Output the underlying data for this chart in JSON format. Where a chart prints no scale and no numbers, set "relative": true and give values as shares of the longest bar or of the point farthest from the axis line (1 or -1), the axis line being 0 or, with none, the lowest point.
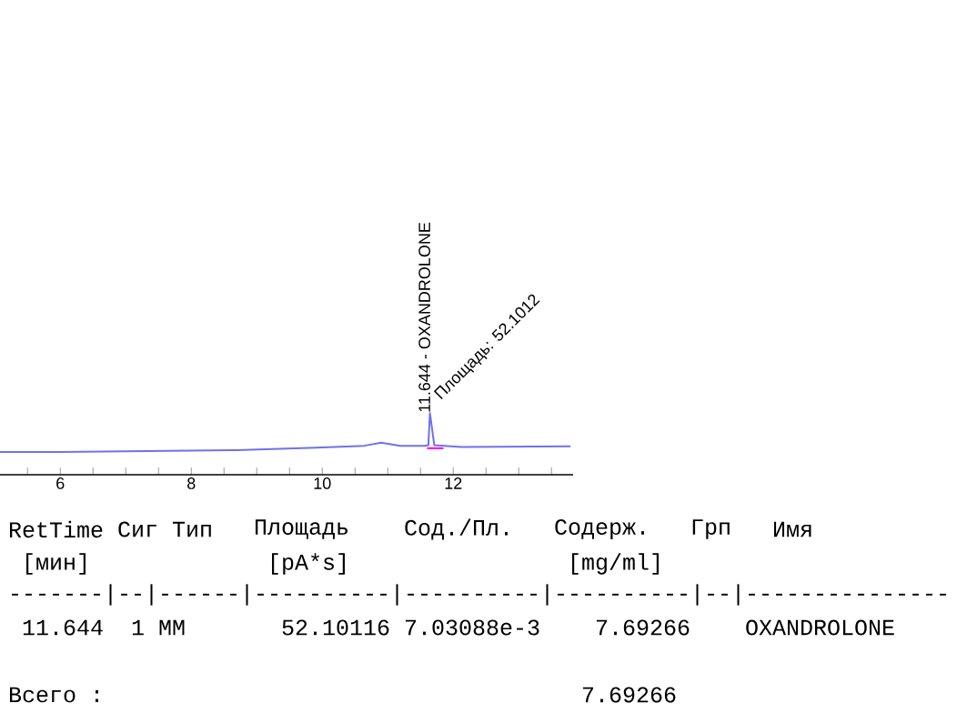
{
  "chart_data": {
    "type": "line",
    "relative": true,
    "xlim": [
      5.08,
      13.83
    ],
    "xticks": [
      {
        "value": 5.5,
        "label": null
      },
      6,
      {
        "value": 6.5,
        "label": null
      },
      {
        "value": 7,
        "label": null
      },
      {
        "value": 7.5,
        "label": null
      },
      8,
      {
        "value": 8.5,
        "label": null
      },
      {
        "value": 9,
        "label": null
      },
      {
        "value": 9.5,
        "label": null
      },
      10,
      {
        "value": 10.5,
        "label": null
      },
      {
        "value": 11,
        "label": null
      },
      {
        "value": 11.5,
        "label": null
      },
      12,
      {
        "value": 12.5,
        "label": null
      },
      {
        "value": 13,
        "label": null
      },
      {
        "value": 13.5,
        "label": null
      }
    ],
    "series": [
      {
        "color": "#7070ee",
        "x": [
          5.08,
          6.0,
          8.69,
          9.9,
          10.64,
          10.9,
          11.19,
          11.56,
          11.62,
          11.644,
          11.71,
          12.12,
          13.79
        ],
        "values": [
          0.37,
          0.37,
          0.4,
          0.44,
          0.47,
          0.52,
          0.47,
          0.47,
          0.48,
          1,
          0.48,
          0.45,
          0.46
        ]
      },
      {
        "color": "#ff00ff",
        "x": [
          11.6,
          11.85
        ],
        "values": [
          0.43,
          0.43
        ]
      }
    ],
    "annotations": [
      {
        "text": "11.644 - OXANDROLONE",
        "x": 11.644,
        "y": 1
      },
      {
        "text": "Площадь: 52.1012",
        "x": 11.644,
        "y": 1
      },
      "RetTime",
      "Сиг",
      "Тип",
      "Площадь",
      "Сод./Пл.",
      "Содерж.",
      "Грп",
      "Имя",
      "[мин]",
      "[pA*s]",
      "[mg/ml]",
      "-------|--|------|----------|----------|----------|--|---------------",
      "11.644",
      "1 MM",
      "52.10116",
      "7.03088e-3",
      "7.69266",
      "OXANDROLONE",
      "Всего :",
      "7.69266"
    ]
  }
}
